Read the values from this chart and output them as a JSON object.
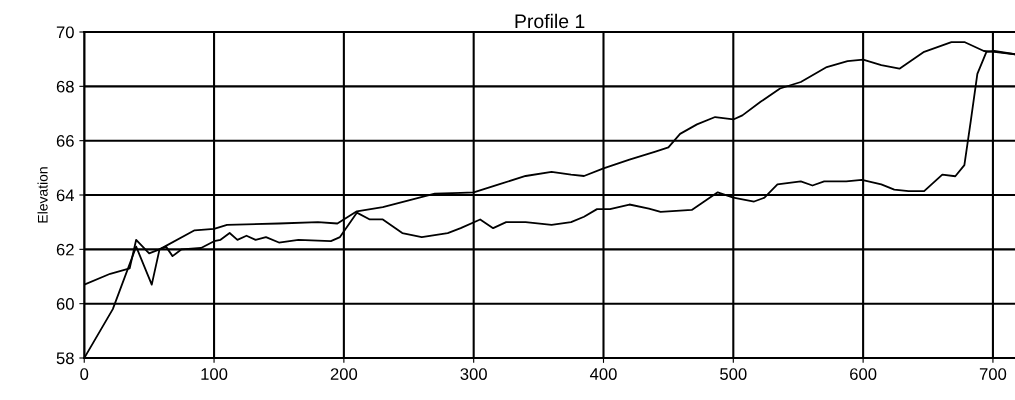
{
  "chart_data": {
    "type": "line",
    "title": "Profile 1",
    "ylabel": "Elevation",
    "xlim": [
      0,
      717
    ],
    "ylim": [
      58,
      70
    ],
    "xticks": [
      0,
      100,
      200,
      300,
      400,
      500,
      600,
      700
    ],
    "yticks": [
      58,
      60,
      62,
      64,
      66,
      68,
      70
    ],
    "grid": true,
    "series": [
      {
        "color": "#000000",
        "x": [
          0,
          20,
          35,
          40,
          50,
          58,
          85,
          100,
          110,
          150,
          180,
          195,
          210,
          230,
          250,
          270,
          290,
          300,
          320,
          340,
          360,
          375,
          385,
          400,
          420,
          440,
          450,
          459,
          472,
          486,
          500,
          507,
          521,
          536,
          552,
          572,
          588,
          600,
          614,
          628,
          647,
          668,
          678,
          693,
          701,
          717
        ],
        "values": [
          60.7,
          61.1,
          61.3,
          62.35,
          61.85,
          62.0,
          62.7,
          62.75,
          62.9,
          62.95,
          63.0,
          62.95,
          63.4,
          63.55,
          63.8,
          64.05,
          64.08,
          64.1,
          64.4,
          64.7,
          64.85,
          64.75,
          64.7,
          64.98,
          65.3,
          65.6,
          65.75,
          66.25,
          66.6,
          66.87,
          66.78,
          66.93,
          67.43,
          67.92,
          68.16,
          68.71,
          68.93,
          68.98,
          68.78,
          68.65,
          69.27,
          69.63,
          69.63,
          69.3,
          69.27,
          69.18
        ]
      },
      {
        "color": "#000000",
        "x": [
          0,
          22,
          40,
          52,
          58,
          63,
          68,
          75,
          90,
          100,
          105,
          112,
          118,
          125,
          132,
          140,
          150,
          165,
          190,
          197,
          210,
          220,
          230,
          245,
          260,
          280,
          290,
          305,
          315,
          325,
          340,
          360,
          375,
          385,
          395,
          405,
          420,
          435,
          444,
          468,
          488,
          500,
          516,
          524,
          534,
          552,
          561,
          570,
          587,
          599,
          614,
          624,
          635,
          647,
          661,
          671,
          678,
          683,
          688,
          695,
          701,
          717
        ],
        "values": [
          58.0,
          59.8,
          62.1,
          60.7,
          62.0,
          62.1,
          61.75,
          62.0,
          62.05,
          62.3,
          62.35,
          62.6,
          62.35,
          62.5,
          62.35,
          62.45,
          62.25,
          62.35,
          62.3,
          62.45,
          63.35,
          63.1,
          63.1,
          62.6,
          62.45,
          62.6,
          62.78,
          63.1,
          62.78,
          63.0,
          63.0,
          62.9,
          63.0,
          63.2,
          63.48,
          63.48,
          63.65,
          63.5,
          63.38,
          63.45,
          64.1,
          63.9,
          63.76,
          63.9,
          64.39,
          64.5,
          64.35,
          64.5,
          64.5,
          64.56,
          64.39,
          64.2,
          64.14,
          64.14,
          64.75,
          64.69,
          65.1,
          66.75,
          68.46,
          69.27,
          69.3,
          69.18
        ]
      }
    ]
  }
}
